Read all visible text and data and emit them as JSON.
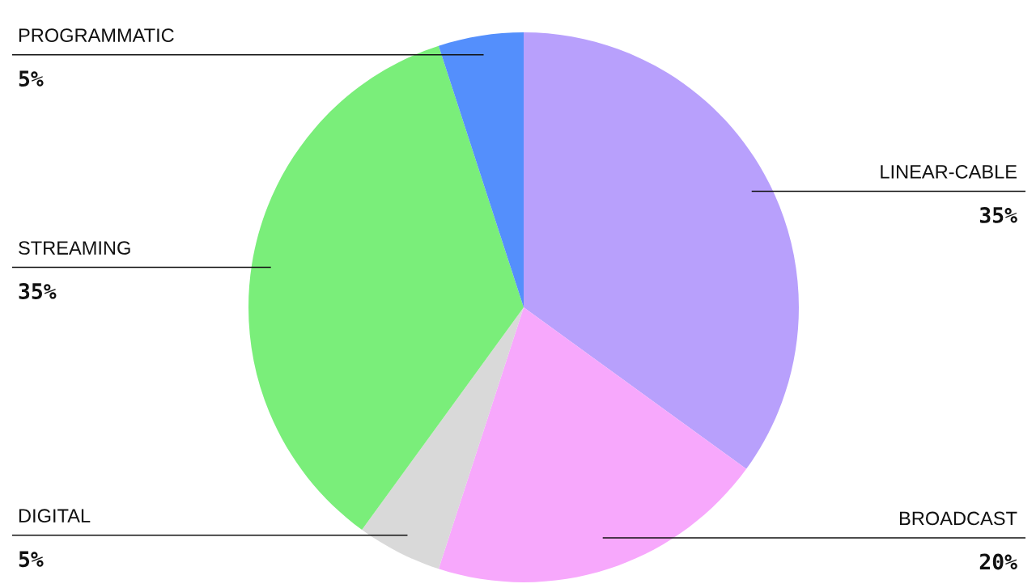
{
  "chart_data": {
    "type": "pie",
    "categories": [
      "LINEAR-CABLE",
      "BROADCAST",
      "DIGITAL",
      "STREAMING",
      "PROGRAMMATIC"
    ],
    "values": [
      35,
      20,
      5,
      35,
      5
    ],
    "colors": [
      "#b8a0fc",
      "#f7a8fc",
      "#d9d9d9",
      "#7aee7a",
      "#548ffc"
    ],
    "value_labels": [
      "35%",
      "20%",
      "5%",
      "35%",
      "5%"
    ]
  }
}
